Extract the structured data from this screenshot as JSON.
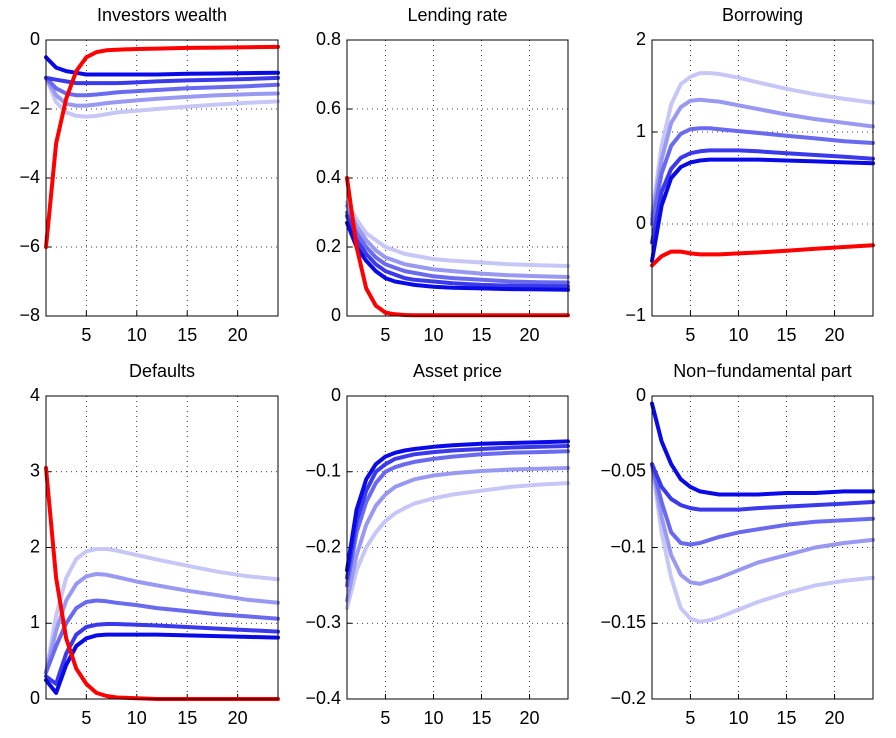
{
  "chart_data": [
    {
      "type": "line",
      "title": "Investors wealth",
      "x": [
        1,
        2,
        3,
        4,
        5,
        6,
        7,
        8,
        10,
        12,
        15,
        18,
        21,
        24
      ],
      "xlim": [
        1,
        24
      ],
      "xticks": [
        5,
        10,
        15,
        20
      ],
      "ylim": [
        -8,
        0
      ],
      "yticks": [
        {
          "value": -8,
          "label": "−8"
        },
        {
          "value": -6,
          "label": "−6"
        },
        {
          "value": -4,
          "label": "−4"
        },
        {
          "value": -2,
          "label": "−2"
        },
        0
      ],
      "grid": true,
      "series": [
        {
          "color": "#ff0000",
          "values": [
            -6,
            -3,
            -1.7,
            -0.9,
            -0.5,
            -0.35,
            -0.3,
            -0.28,
            -0.26,
            -0.25,
            -0.23,
            -0.22,
            -0.21,
            -0.2
          ]
        },
        {
          "color": "#0a0ae6",
          "values": [
            -0.5,
            -0.8,
            -0.9,
            -0.95,
            -1.0,
            -1.0,
            -1.0,
            -1.0,
            -1.0,
            -1.0,
            -0.98,
            -0.97,
            -0.96,
            -0.95
          ]
        },
        {
          "color": "#3a3aea",
          "values": [
            -1.1,
            -1.15,
            -1.2,
            -1.25,
            -1.25,
            -1.25,
            -1.25,
            -1.25,
            -1.23,
            -1.2,
            -1.17,
            -1.15,
            -1.13,
            -1.1
          ]
        },
        {
          "color": "#6a6aee",
          "values": [
            -1.1,
            -1.4,
            -1.55,
            -1.6,
            -1.6,
            -1.58,
            -1.55,
            -1.52,
            -1.48,
            -1.45,
            -1.4,
            -1.37,
            -1.34,
            -1.3
          ]
        },
        {
          "color": "#9999f2",
          "values": [
            -1.1,
            -1.6,
            -1.85,
            -1.9,
            -1.9,
            -1.87,
            -1.83,
            -1.8,
            -1.75,
            -1.7,
            -1.65,
            -1.6,
            -1.57,
            -1.55
          ]
        },
        {
          "color": "#c6c6f7",
          "values": [
            -1.1,
            -1.8,
            -2.1,
            -2.2,
            -2.22,
            -2.2,
            -2.15,
            -2.1,
            -2.05,
            -2.0,
            -1.93,
            -1.87,
            -1.82,
            -1.78
          ]
        }
      ]
    },
    {
      "type": "line",
      "title": "Lending rate",
      "x": [
        1,
        2,
        3,
        4,
        5,
        6,
        7,
        8,
        10,
        12,
        15,
        18,
        21,
        24
      ],
      "xlim": [
        1,
        24
      ],
      "xticks": [
        5,
        10,
        15,
        20
      ],
      "ylim": [
        0,
        0.8
      ],
      "yticks": [
        0,
        0.2,
        0.4,
        0.6,
        0.8
      ],
      "grid": true,
      "series": [
        {
          "color": "#ff0000",
          "values": [
            0.4,
            0.2,
            0.08,
            0.03,
            0.01,
            0.005,
            0.003,
            0.002,
            0.002,
            0.002,
            0.002,
            0.002,
            0.002,
            0.002
          ]
        },
        {
          "color": "#0a0ae6",
          "values": [
            0.27,
            0.2,
            0.16,
            0.13,
            0.11,
            0.1,
            0.095,
            0.09,
            0.085,
            0.082,
            0.08,
            0.078,
            0.077,
            0.076
          ]
        },
        {
          "color": "#3a3aea",
          "values": [
            0.29,
            0.22,
            0.18,
            0.15,
            0.13,
            0.12,
            0.11,
            0.105,
            0.1,
            0.095,
            0.09,
            0.088,
            0.087,
            0.086
          ]
        },
        {
          "color": "#6a6aee",
          "values": [
            0.3,
            0.24,
            0.2,
            0.17,
            0.15,
            0.14,
            0.13,
            0.125,
            0.115,
            0.11,
            0.105,
            0.1,
            0.098,
            0.097
          ]
        },
        {
          "color": "#9999f2",
          "values": [
            0.32,
            0.26,
            0.22,
            0.19,
            0.17,
            0.16,
            0.15,
            0.145,
            0.135,
            0.13,
            0.123,
            0.118,
            0.115,
            0.113
          ]
        },
        {
          "color": "#c6c6f7",
          "values": [
            0.33,
            0.28,
            0.24,
            0.22,
            0.2,
            0.19,
            0.18,
            0.175,
            0.165,
            0.16,
            0.155,
            0.15,
            0.147,
            0.145
          ]
        }
      ]
    },
    {
      "type": "line",
      "title": "Borrowing",
      "x": [
        1,
        2,
        3,
        4,
        5,
        6,
        7,
        8,
        10,
        12,
        15,
        18,
        21,
        24
      ],
      "xlim": [
        1,
        24
      ],
      "xticks": [
        5,
        10,
        15,
        20
      ],
      "ylim": [
        -1,
        2
      ],
      "yticks": [
        {
          "value": -1,
          "label": "−1"
        },
        0,
        1,
        2
      ],
      "grid": true,
      "series": [
        {
          "color": "#ff0000",
          "values": [
            -0.45,
            -0.35,
            -0.3,
            -0.3,
            -0.32,
            -0.33,
            -0.33,
            -0.33,
            -0.32,
            -0.31,
            -0.29,
            -0.27,
            -0.25,
            -0.23
          ]
        },
        {
          "color": "#0a0ae6",
          "values": [
            -0.4,
            0.2,
            0.5,
            0.62,
            0.67,
            0.69,
            0.7,
            0.7,
            0.7,
            0.7,
            0.69,
            0.68,
            0.67,
            0.66
          ]
        },
        {
          "color": "#3a3aea",
          "values": [
            -0.2,
            0.35,
            0.6,
            0.72,
            0.77,
            0.79,
            0.8,
            0.8,
            0.8,
            0.79,
            0.77,
            0.75,
            0.73,
            0.71
          ]
        },
        {
          "color": "#6a6aee",
          "values": [
            0,
            0.55,
            0.85,
            0.98,
            1.03,
            1.04,
            1.04,
            1.03,
            1.01,
            0.99,
            0.96,
            0.93,
            0.9,
            0.88
          ]
        },
        {
          "color": "#9999f2",
          "values": [
            0.05,
            0.7,
            1.1,
            1.27,
            1.34,
            1.35,
            1.34,
            1.33,
            1.29,
            1.25,
            1.19,
            1.14,
            1.1,
            1.06
          ]
        },
        {
          "color": "#c6c6f7",
          "values": [
            0.1,
            0.85,
            1.3,
            1.52,
            1.6,
            1.64,
            1.64,
            1.63,
            1.59,
            1.54,
            1.47,
            1.41,
            1.36,
            1.32
          ]
        }
      ]
    },
    {
      "type": "line",
      "title": "Defaults",
      "x": [
        1,
        2,
        3,
        4,
        5,
        6,
        7,
        8,
        10,
        12,
        15,
        18,
        21,
        24
      ],
      "xlim": [
        1,
        24
      ],
      "xticks": [
        5,
        10,
        15,
        20
      ],
      "ylim": [
        0,
        4
      ],
      "yticks": [
        0,
        1,
        2,
        3,
        4
      ],
      "grid": true,
      "series": [
        {
          "color": "#ff0000",
          "values": [
            3.05,
            1.6,
            0.8,
            0.4,
            0.2,
            0.08,
            0.04,
            0.02,
            0.01,
            0,
            0,
            0,
            0,
            0
          ]
        },
        {
          "color": "#0a0ae6",
          "values": [
            0.25,
            0.08,
            0.45,
            0.7,
            0.8,
            0.84,
            0.85,
            0.85,
            0.85,
            0.85,
            0.84,
            0.83,
            0.82,
            0.81
          ]
        },
        {
          "color": "#3a3aea",
          "values": [
            0.3,
            0.2,
            0.6,
            0.85,
            0.95,
            0.98,
            0.99,
            0.99,
            0.98,
            0.97,
            0.95,
            0.93,
            0.91,
            0.89
          ]
        },
        {
          "color": "#6a6aee",
          "values": [
            0.35,
            0.7,
            1.0,
            1.2,
            1.28,
            1.3,
            1.29,
            1.27,
            1.24,
            1.2,
            1.16,
            1.12,
            1.09,
            1.06
          ]
        },
        {
          "color": "#9999f2",
          "values": [
            0.35,
            0.9,
            1.3,
            1.52,
            1.62,
            1.65,
            1.64,
            1.61,
            1.55,
            1.5,
            1.43,
            1.37,
            1.31,
            1.27
          ]
        },
        {
          "color": "#c6c6f7",
          "values": [
            0.35,
            1.1,
            1.6,
            1.85,
            1.95,
            1.98,
            1.98,
            1.96,
            1.9,
            1.84,
            1.76,
            1.68,
            1.62,
            1.58
          ]
        }
      ]
    },
    {
      "type": "line",
      "title": "Asset price",
      "x": [
        1,
        2,
        3,
        4,
        5,
        6,
        7,
        8,
        10,
        12,
        15,
        18,
        21,
        24
      ],
      "xlim": [
        1,
        24
      ],
      "xticks": [
        5,
        10,
        15,
        20
      ],
      "ylim": [
        -0.4,
        0
      ],
      "yticks": [
        {
          "value": -0.4,
          "label": "−0.4"
        },
        {
          "value": -0.3,
          "label": "−0.3"
        },
        {
          "value": -0.2,
          "label": "−0.2"
        },
        {
          "value": -0.1,
          "label": "−0.1"
        },
        0
      ],
      "grid": true,
      "series": [
        {
          "color": "#0a0ae6",
          "values": [
            -0.23,
            -0.15,
            -0.11,
            -0.09,
            -0.08,
            -0.075,
            -0.072,
            -0.07,
            -0.067,
            -0.065,
            -0.063,
            -0.062,
            -0.061,
            -0.06
          ]
        },
        {
          "color": "#3a3aea",
          "values": [
            -0.24,
            -0.165,
            -0.125,
            -0.1,
            -0.09,
            -0.083,
            -0.08,
            -0.077,
            -0.074,
            -0.072,
            -0.07,
            -0.068,
            -0.067,
            -0.066
          ]
        },
        {
          "color": "#6a6aee",
          "values": [
            -0.25,
            -0.18,
            -0.14,
            -0.115,
            -0.1,
            -0.094,
            -0.09,
            -0.087,
            -0.083,
            -0.08,
            -0.077,
            -0.075,
            -0.074,
            -0.073
          ]
        },
        {
          "color": "#9999f2",
          "values": [
            -0.27,
            -0.21,
            -0.17,
            -0.145,
            -0.13,
            -0.12,
            -0.115,
            -0.11,
            -0.105,
            -0.102,
            -0.099,
            -0.097,
            -0.096,
            -0.095
          ]
        },
        {
          "color": "#c6c6f7",
          "values": [
            -0.28,
            -0.23,
            -0.2,
            -0.18,
            -0.165,
            -0.155,
            -0.148,
            -0.142,
            -0.135,
            -0.13,
            -0.125,
            -0.12,
            -0.117,
            -0.115
          ]
        }
      ]
    },
    {
      "type": "line",
      "title": "Non−fundamental part",
      "x": [
        1,
        2,
        3,
        4,
        5,
        6,
        7,
        8,
        10,
        12,
        15,
        18,
        21,
        24
      ],
      "xlim": [
        1,
        24
      ],
      "xticks": [
        5,
        10,
        15,
        20
      ],
      "ylim": [
        -0.2,
        0
      ],
      "yticks": [
        {
          "value": -0.2,
          "label": "−0.2"
        },
        {
          "value": -0.15,
          "label": "−0.15"
        },
        {
          "value": -0.1,
          "label": "−0.1"
        },
        {
          "value": -0.05,
          "label": "−0.05"
        },
        0
      ],
      "grid": true,
      "series": [
        {
          "color": "#0a0ae6",
          "values": [
            -0.005,
            -0.03,
            -0.045,
            -0.055,
            -0.06,
            -0.063,
            -0.064,
            -0.065,
            -0.065,
            -0.065,
            -0.064,
            -0.064,
            -0.063,
            -0.063
          ]
        },
        {
          "color": "#3a3aea",
          "values": [
            -0.045,
            -0.06,
            -0.068,
            -0.072,
            -0.074,
            -0.075,
            -0.075,
            -0.075,
            -0.075,
            -0.074,
            -0.073,
            -0.072,
            -0.071,
            -0.07
          ]
        },
        {
          "color": "#6a6aee",
          "values": [
            -0.045,
            -0.07,
            -0.09,
            -0.097,
            -0.098,
            -0.097,
            -0.095,
            -0.093,
            -0.09,
            -0.088,
            -0.085,
            -0.083,
            -0.082,
            -0.081
          ]
        },
        {
          "color": "#9999f2",
          "values": [
            -0.045,
            -0.08,
            -0.105,
            -0.118,
            -0.123,
            -0.124,
            -0.122,
            -0.12,
            -0.115,
            -0.11,
            -0.105,
            -0.1,
            -0.097,
            -0.095
          ]
        },
        {
          "color": "#c6c6f7",
          "values": [
            -0.045,
            -0.09,
            -0.12,
            -0.14,
            -0.147,
            -0.149,
            -0.148,
            -0.146,
            -0.141,
            -0.136,
            -0.13,
            -0.125,
            -0.122,
            -0.12
          ]
        }
      ]
    }
  ]
}
